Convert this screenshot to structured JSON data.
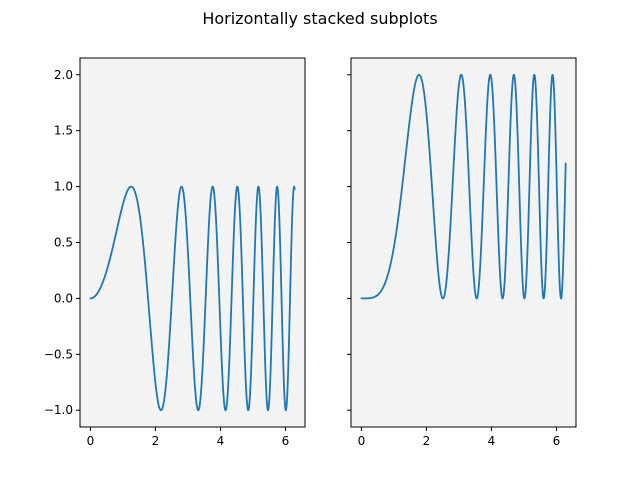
{
  "chart_data": {
    "title": "Horizontally stacked subplots",
    "type": "line",
    "subplots": [
      {
        "series": [
          {
            "expression": "sin(x^2)",
            "x_range": [
              0,
              6.2832
            ],
            "samples": 800
          }
        ],
        "xlim": [
          -0.32,
          6.6
        ],
        "ylim": [
          -1.15,
          2.15
        ],
        "xticks": [
          0,
          2,
          4,
          6
        ],
        "xtick_labels": [
          "0",
          "2",
          "4",
          "6"
        ],
        "yticks": [
          -1.0,
          -0.5,
          0.0,
          0.5,
          1.0,
          1.5,
          2.0
        ],
        "ytick_labels": [
          "−1.0",
          "−0.5",
          "0.0",
          "0.5",
          "1.0",
          "1.5",
          "2.0"
        ],
        "show_ytick_labels": true
      },
      {
        "series": [
          {
            "expression": "1 - cos(x^2)",
            "x_range": [
              0,
              6.2832
            ],
            "samples": 800
          }
        ],
        "xlim": [
          -0.32,
          6.6
        ],
        "ylim": [
          -1.15,
          2.15
        ],
        "xticks": [
          0,
          2,
          4,
          6
        ],
        "xtick_labels": [
          "0",
          "2",
          "4",
          "6"
        ],
        "yticks": [
          -1.0,
          -0.5,
          0.0,
          0.5,
          1.0,
          1.5,
          2.0
        ],
        "ytick_labels": [
          "",
          "",
          "",
          "",
          "",
          "",
          ""
        ],
        "show_ytick_labels": false
      }
    ],
    "grid": false,
    "colors": {
      "line": "#1f77b4",
      "axes_background": "#f3f3f3"
    }
  }
}
